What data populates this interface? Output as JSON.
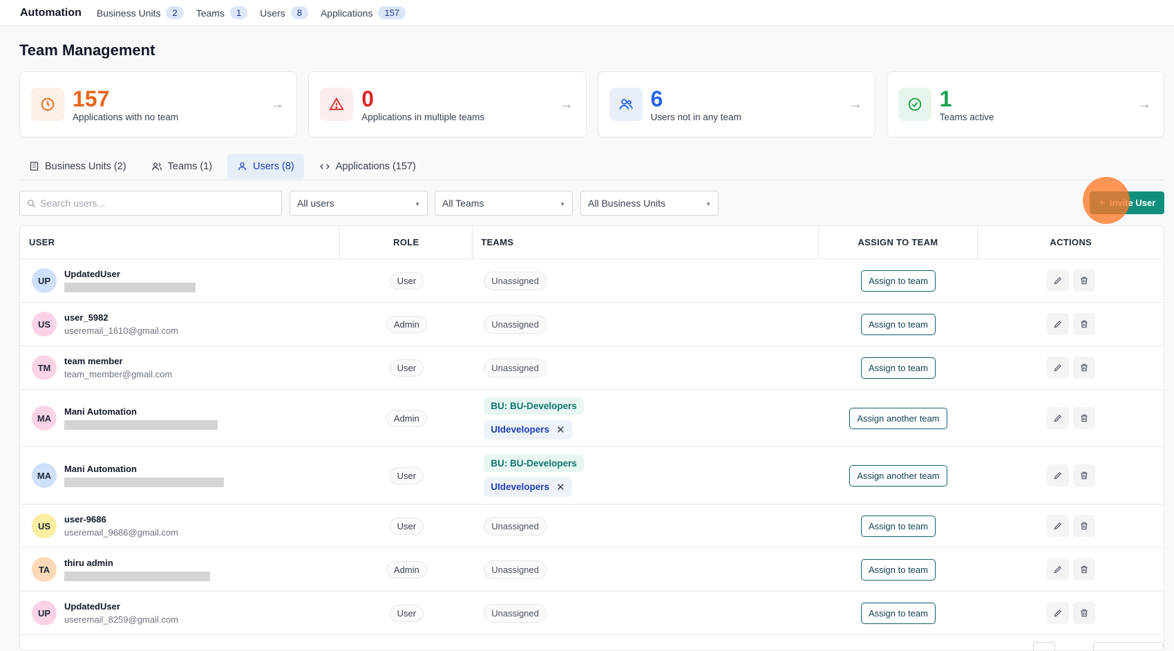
{
  "nav": {
    "brand": "Automation",
    "links": [
      {
        "label": "Business Units",
        "count": "2"
      },
      {
        "label": "Teams",
        "count": "1"
      },
      {
        "label": "Users",
        "count": "8"
      },
      {
        "label": "Applications",
        "count": "157"
      }
    ]
  },
  "page_title": "Team Management",
  "stats": [
    {
      "value": "157",
      "label": "Applications with no team",
      "color": "#e8651a",
      "bg": "#fdf0e6",
      "icon": "clock-icon"
    },
    {
      "value": "0",
      "label": "Applications in multiple teams",
      "color": "#dc2626",
      "bg": "#fdecec",
      "icon": "warning-icon"
    },
    {
      "value": "6",
      "label": "Users not in any team",
      "color": "#2563eb",
      "bg": "#e8effb",
      "icon": "users-icon"
    },
    {
      "value": "1",
      "label": "Teams active",
      "color": "#16a34a",
      "bg": "#e7f6ec",
      "icon": "check-circle-icon"
    }
  ],
  "tabs": [
    {
      "label": "Business Units (2)",
      "icon": "building-icon"
    },
    {
      "label": "Teams (1)",
      "icon": "team-icon"
    },
    {
      "label": "Users (8)",
      "icon": "user-icon",
      "active": true
    },
    {
      "label": "Applications (157)",
      "icon": "code-icon"
    }
  ],
  "filters": {
    "search_placeholder": "Search users...",
    "users": "All users",
    "teams": "All Teams",
    "business_units": "All Business Units"
  },
  "invite_label": "Invite User",
  "columns": {
    "user": "USER",
    "role": "ROLE",
    "teams": "TEAMS",
    "assign": "ASSIGN TO TEAM",
    "actions": "ACTIONS"
  },
  "users": [
    {
      "initials": "UP",
      "name": "UpdatedUser",
      "email": "",
      "role": "User",
      "teams": "Unassigned",
      "assign": "Assign to team",
      "avatar_color": "#cfe0fb"
    },
    {
      "initials": "US",
      "name": "user_5982",
      "email": "useremail_1610@gmail.com",
      "role": "Admin",
      "teams": "Unassigned",
      "assign": "Assign to team",
      "avatar_color": "#fbd3e6"
    },
    {
      "initials": "TM",
      "name": "team member",
      "email": "team_member@gmail.com",
      "role": "User",
      "teams": "Unassigned",
      "assign": "Assign to team",
      "avatar_color": "#fbd3e6"
    },
    {
      "initials": "MA",
      "name": "Mani Automation",
      "email": "",
      "role": "Admin",
      "bu": "BU: BU-Developers",
      "team": "UIdevelopers",
      "assign": "Assign another team",
      "avatar_color": "#fbd3e6"
    },
    {
      "initials": "MA",
      "name": "Mani Automation",
      "email": "",
      "role": "User",
      "bu": "BU: BU-Developers",
      "team": "UIdevelopers",
      "assign": "Assign another team",
      "avatar_color": "#cfe0fb"
    },
    {
      "initials": "US",
      "name": "user-9686",
      "email": "useremail_9686@gmail.com",
      "role": "User",
      "teams": "Unassigned",
      "assign": "Assign to team",
      "avatar_color": "#fbeea0"
    },
    {
      "initials": "TA",
      "name": "thiru admin",
      "email": "",
      "role": "Admin",
      "teams": "Unassigned",
      "assign": "Assign to team",
      "avatar_color": "#fcd9b8"
    },
    {
      "initials": "UP",
      "name": "UpdatedUser",
      "email": "useremail_8259@gmail.com",
      "role": "User",
      "teams": "Unassigned",
      "assign": "Assign to team",
      "avatar_color": "#fbd3e6"
    }
  ]
}
